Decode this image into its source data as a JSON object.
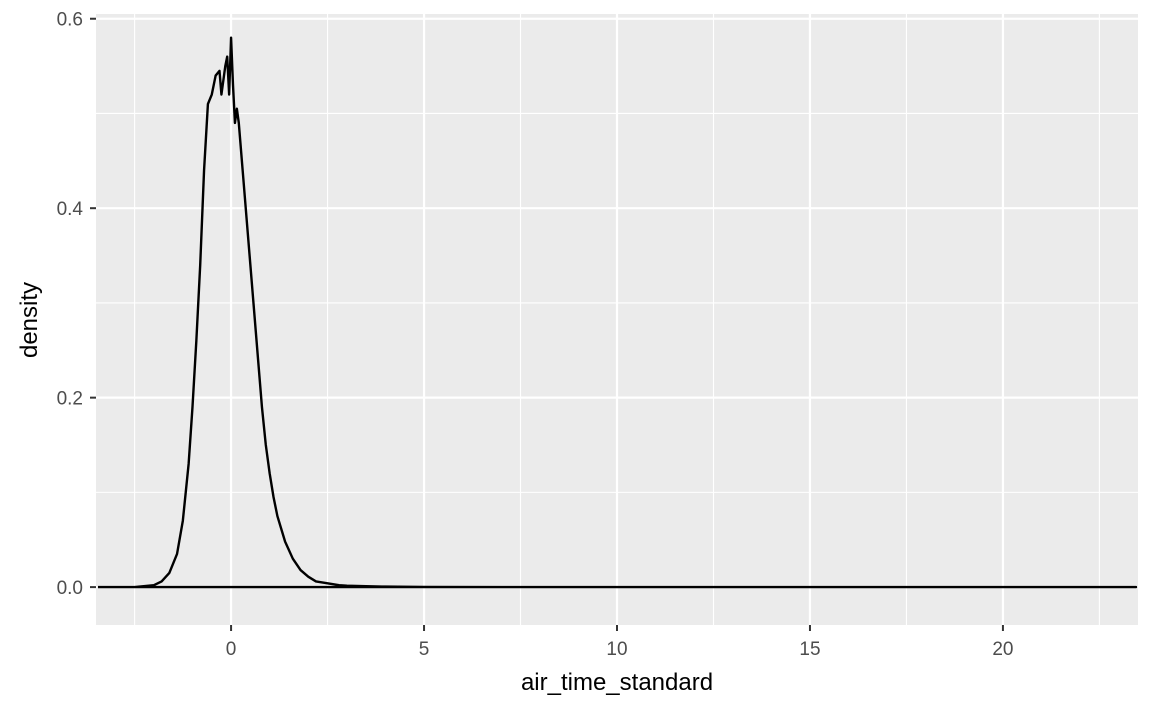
{
  "chart_data": {
    "type": "line",
    "title": "",
    "xlabel": "air_time_standard",
    "ylabel": "density",
    "xlim": [
      -3.5,
      23.5
    ],
    "ylim": [
      -0.04,
      0.605
    ],
    "x_ticks": [
      0,
      5,
      10,
      15,
      20
    ],
    "x_tick_labels": [
      "0",
      "5",
      "10",
      "15",
      "20"
    ],
    "y_ticks": [
      0.0,
      0.2,
      0.4,
      0.6
    ],
    "y_tick_labels": [
      "0.0",
      "0.2",
      "0.4",
      "0.6"
    ],
    "grid": true,
    "legend": "none",
    "colors": {
      "panel_background": "#ebebeb",
      "grid": "#ffffff",
      "line": "#000000",
      "tick_label": "#4d4d4d",
      "axis_title": "#000000"
    },
    "series": [
      {
        "x": [
          -3.45,
          -2.5,
          -2.0,
          -1.8,
          -1.6,
          -1.4,
          -1.25,
          -1.1,
          -1.0,
          -0.9,
          -0.8,
          -0.7,
          -0.6,
          -0.5,
          -0.4,
          -0.3,
          -0.25,
          -0.15,
          -0.1,
          -0.05,
          0.0,
          0.05,
          0.1,
          0.15,
          0.2,
          0.3,
          0.4,
          0.5,
          0.6,
          0.7,
          0.8,
          0.9,
          1.0,
          1.1,
          1.2,
          1.4,
          1.6,
          1.8,
          2.0,
          2.2,
          2.5,
          2.8,
          3.0,
          3.5,
          4.0,
          5.0,
          7.0,
          10.0,
          15.0,
          20.0,
          23.45
        ],
        "y": [
          0.0,
          0.0,
          0.002,
          0.006,
          0.015,
          0.035,
          0.07,
          0.13,
          0.19,
          0.26,
          0.34,
          0.44,
          0.51,
          0.52,
          0.54,
          0.545,
          0.52,
          0.55,
          0.56,
          0.52,
          0.58,
          0.53,
          0.49,
          0.505,
          0.49,
          0.44,
          0.39,
          0.34,
          0.29,
          0.24,
          0.19,
          0.15,
          0.12,
          0.095,
          0.075,
          0.048,
          0.03,
          0.018,
          0.011,
          0.006,
          0.004,
          0.002,
          0.0015,
          0.001,
          0.0005,
          0.0002,
          0.0,
          0.0,
          0.0,
          0.0,
          0.0
        ]
      }
    ]
  }
}
